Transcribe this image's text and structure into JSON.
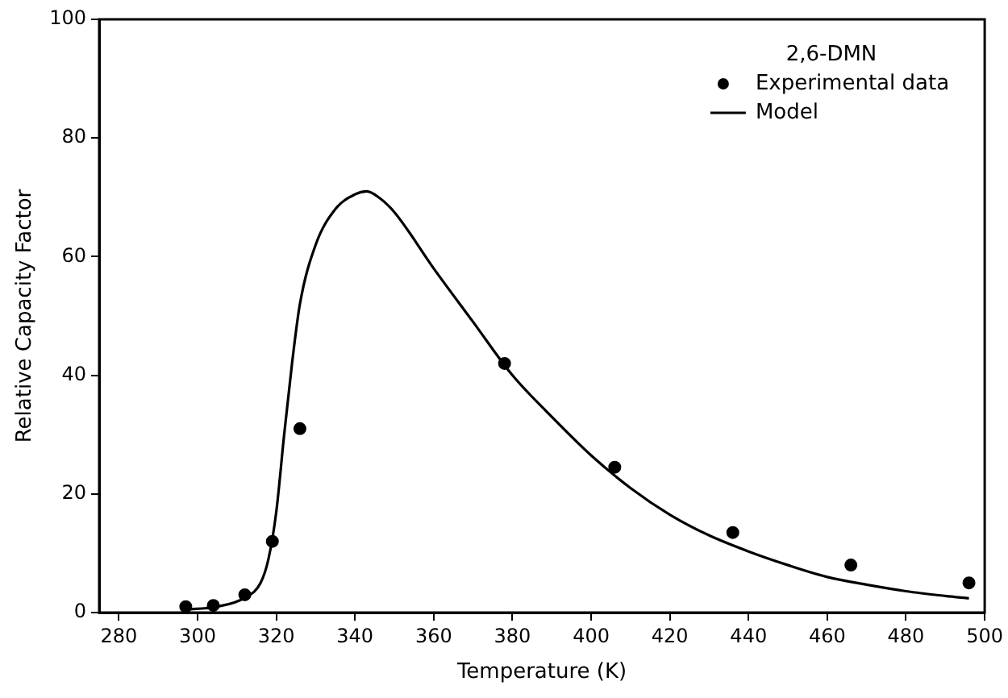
{
  "chart_data": {
    "type": "scatter",
    "xlabel": "Temperature (K)",
    "ylabel": "Relative Capacity Factor",
    "legend_title": "2,6-DMN",
    "legend": "top right",
    "grid": false,
    "xlim": [
      275,
      500
    ],
    "xticks": [
      280,
      300,
      320,
      340,
      360,
      380,
      400,
      420,
      440,
      460,
      480,
      500
    ],
    "ylim": [
      0,
      100
    ],
    "yticks": [
      0,
      20,
      40,
      60,
      80,
      100
    ],
    "series": [
      {
        "name": "Experimental data",
        "marker": "circle",
        "color": "#000000",
        "x": [
          297,
          304,
          312,
          319,
          326,
          378,
          406,
          436,
          466,
          496
        ],
        "values": [
          1,
          1.2,
          3,
          12,
          31,
          42,
          24.5,
          13.5,
          8,
          5
        ]
      },
      {
        "name": "Model",
        "type": "line",
        "marker": "none",
        "line_style": "solid",
        "color": "#000000",
        "x": [
          297,
          305,
          312,
          316,
          318,
          320,
          322,
          324,
          326,
          330,
          335,
          340,
          343,
          346,
          350,
          360,
          370,
          380,
          390,
          400,
          410,
          420,
          430,
          440,
          450,
          460,
          470,
          480,
          490,
          496
        ],
        "values": [
          0.5,
          1,
          2.5,
          5,
          9,
          17,
          30,
          42,
          52,
          62,
          68,
          70.5,
          71,
          70,
          67.5,
          58,
          49,
          40,
          33,
          26.5,
          21,
          16.5,
          13,
          10.3,
          8,
          6,
          4.7,
          3.6,
          2.8,
          2.4
        ]
      }
    ]
  }
}
